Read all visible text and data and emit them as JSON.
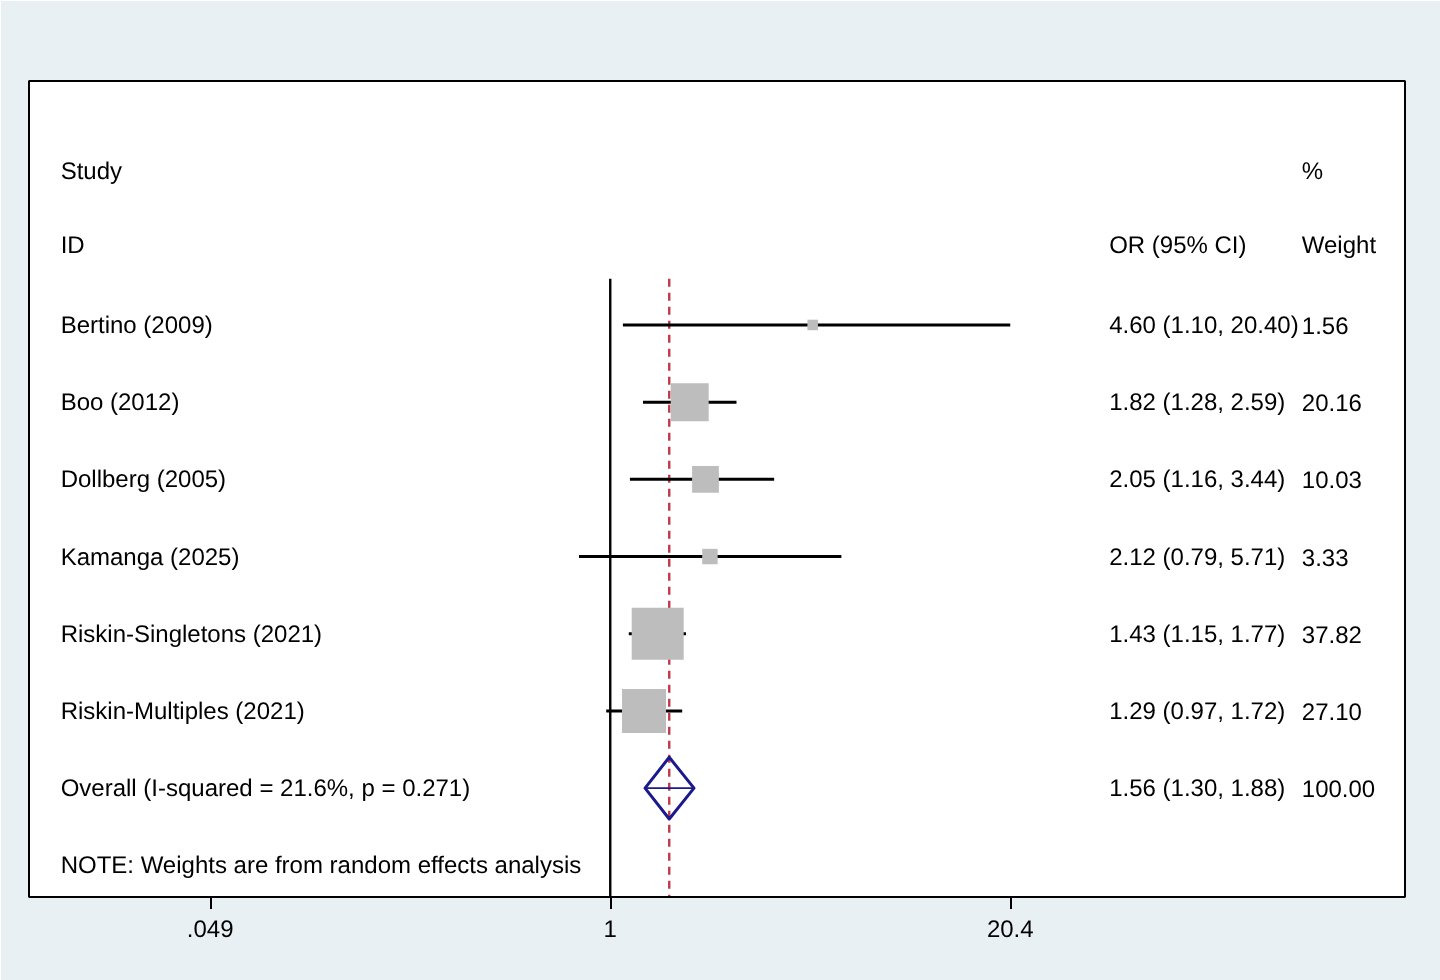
{
  "chart_data": {
    "type": "scatter",
    "orientation": "horizontal",
    "log": "x",
    "grid": false,
    "xlim": [
      0.0125,
      400
    ],
    "xticks": [
      {
        "value": 0.049,
        "label": ".049"
      },
      1,
      20.4
    ],
    "categories": [
      "Bertino (2009)",
      "Boo (2012)",
      "Dollberg  (2005)",
      "Kamanga (2025)",
      "Riskin-Singletons (2021)",
      "Riskin-Multiples (2021)",
      "Overall  (I-squared = 21.6%, p = 0.271)"
    ],
    "series": [
      {
        "type": "scatter",
        "marker": "square",
        "color": "#bdbdbd",
        "values": [
          4.6,
          1.82,
          2.05,
          2.12,
          1.43,
          1.29,
          null
        ],
        "errors": [
          [
            1.1,
            20.4
          ],
          [
            1.28,
            2.59
          ],
          [
            1.16,
            3.44
          ],
          [
            0.79,
            5.71
          ],
          [
            1.15,
            1.77
          ],
          [
            0.97,
            1.72
          ],
          null
        ],
        "sizes": [
          0.041,
          0.533,
          0.265,
          0.088,
          1,
          0.717,
          null
        ]
      },
      {
        "type": "scatter",
        "marker": "diamond",
        "color": "#1a1a8c",
        "values": [
          null,
          null,
          null,
          null,
          null,
          null,
          1.56
        ],
        "errors": [
          null,
          null,
          null,
          null,
          null,
          null,
          [
            1.3,
            1.88
          ]
        ]
      }
    ],
    "ref_lines": [
      {
        "axis": "x",
        "value": 1,
        "color": "#000000",
        "line_style": "solid"
      },
      {
        "axis": "x",
        "value": 1.56,
        "color": "#c0394b",
        "line_style": "dashed"
      }
    ],
    "annotations": [
      "Study",
      "ID",
      "OR (95% CI)",
      "%",
      "Weight",
      "4.60 (1.10, 20.40)",
      "1.56",
      "1.82 (1.28, 2.59)",
      "20.16",
      "2.05 (1.16, 3.44)",
      "10.03",
      "2.12 (0.79, 5.71)",
      "3.33",
      "1.43 (1.15, 1.77)",
      "37.82",
      "1.29 (0.97, 1.72)",
      "27.10",
      "1.56 (1.30, 1.88)",
      "100.00",
      "NOTE: Weights are from random effects analysis"
    ]
  }
}
